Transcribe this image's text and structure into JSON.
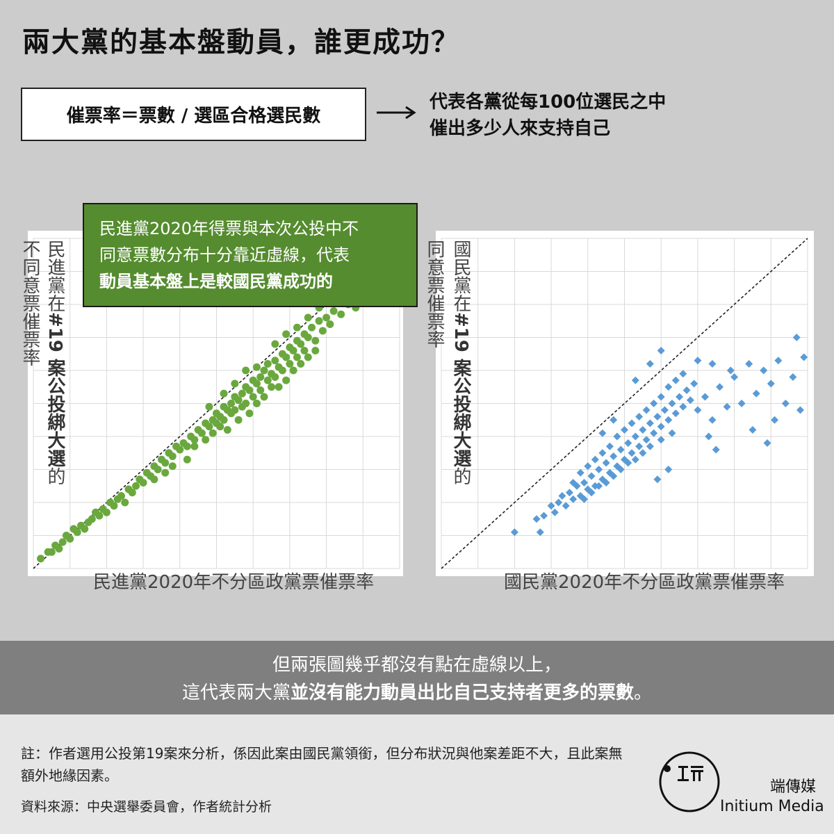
{
  "title": "兩大黨的基本盤動員，誰更成功？",
  "formula": "催票率＝票數 / 選區合格選民數",
  "formula_desc": [
    "代表各黨從每100位選民之中",
    "催出多少人來支持自己"
  ],
  "callout": {
    "lines": [
      "民進黨2020年得票與本次公投中不",
      "同意票數分布十分靠近虛線，代表"
    ],
    "bold_line": "動員基本盤上是較國民黨成功的"
  },
  "banner": {
    "line1": "但兩張圖幾乎都沒有點在虛線以上，",
    "line2_normal": "這代表兩大黨",
    "line2_bold": "並沒有能力動員出比自己支持者更多的票數",
    "line2_end": "。"
  },
  "footer": {
    "note": "註：作者選用公投第19案來分析，係因此案由國民黨領銜，但分布狀況與他案差距不大，且此案無額外地緣因素。",
    "source": "資料來源：中央選舉委員會，作者統計分析",
    "brand_zh": "端傳媒",
    "brand_en": "Initium Media"
  },
  "colors": {
    "dpp": "#6aa83e",
    "kmt": "#5b9bd5",
    "callout": "#558c2f",
    "banner": "#7f7f7f"
  },
  "chart_data": [
    {
      "type": "scatter",
      "series_color": "#6aa83e",
      "marker": "circle",
      "xlabel": "民進黨2020年不分區政黨票催票率",
      "ylabel_left": "不同意票催票率",
      "ylabel_right_normal_top": "民進黨在",
      "ylabel_right_bold": "#19 案公投綁大選",
      "ylabel_right_normal_bottom": "的",
      "xlim": [
        0,
        1
      ],
      "ylim": [
        0,
        1
      ],
      "grid": true,
      "reference_line": "y = x (dashed)",
      "points": [
        [
          0.02,
          0.03
        ],
        [
          0.04,
          0.05
        ],
        [
          0.05,
          0.05
        ],
        [
          0.06,
          0.07
        ],
        [
          0.07,
          0.06
        ],
        [
          0.08,
          0.08
        ],
        [
          0.09,
          0.1
        ],
        [
          0.1,
          0.09
        ],
        [
          0.11,
          0.12
        ],
        [
          0.12,
          0.11
        ],
        [
          0.13,
          0.13
        ],
        [
          0.14,
          0.12
        ],
        [
          0.15,
          0.14
        ],
        [
          0.16,
          0.15
        ],
        [
          0.17,
          0.17
        ],
        [
          0.18,
          0.16
        ],
        [
          0.19,
          0.18
        ],
        [
          0.2,
          0.17
        ],
        [
          0.21,
          0.2
        ],
        [
          0.22,
          0.19
        ],
        [
          0.23,
          0.21
        ],
        [
          0.24,
          0.22
        ],
        [
          0.25,
          0.2
        ],
        [
          0.26,
          0.24
        ],
        [
          0.27,
          0.23
        ],
        [
          0.28,
          0.25
        ],
        [
          0.29,
          0.27
        ],
        [
          0.3,
          0.26
        ],
        [
          0.31,
          0.29
        ],
        [
          0.32,
          0.28
        ],
        [
          0.33,
          0.31
        ],
        [
          0.34,
          0.3
        ],
        [
          0.35,
          0.33
        ],
        [
          0.36,
          0.32
        ],
        [
          0.37,
          0.35
        ],
        [
          0.38,
          0.34
        ],
        [
          0.39,
          0.37
        ],
        [
          0.4,
          0.36
        ],
        [
          0.41,
          0.38
        ],
        [
          0.42,
          0.37
        ],
        [
          0.43,
          0.4
        ],
        [
          0.44,
          0.39
        ],
        [
          0.45,
          0.42
        ],
        [
          0.46,
          0.41
        ],
        [
          0.47,
          0.44
        ],
        [
          0.48,
          0.43
        ],
        [
          0.49,
          0.45
        ],
        [
          0.5,
          0.44
        ],
        [
          0.5,
          0.47
        ],
        [
          0.51,
          0.46
        ],
        [
          0.52,
          0.49
        ],
        [
          0.52,
          0.45
        ],
        [
          0.53,
          0.48
        ],
        [
          0.54,
          0.5
        ],
        [
          0.54,
          0.47
        ],
        [
          0.55,
          0.52
        ],
        [
          0.55,
          0.48
        ],
        [
          0.56,
          0.51
        ],
        [
          0.57,
          0.53
        ],
        [
          0.57,
          0.49
        ],
        [
          0.58,
          0.55
        ],
        [
          0.58,
          0.5
        ],
        [
          0.59,
          0.54
        ],
        [
          0.6,
          0.57
        ],
        [
          0.6,
          0.52
        ],
        [
          0.61,
          0.56
        ],
        [
          0.62,
          0.58
        ],
        [
          0.62,
          0.54
        ],
        [
          0.63,
          0.6
        ],
        [
          0.64,
          0.57
        ],
        [
          0.64,
          0.62
        ],
        [
          0.65,
          0.59
        ],
        [
          0.66,
          0.63
        ],
        [
          0.66,
          0.58
        ],
        [
          0.67,
          0.61
        ],
        [
          0.68,
          0.65
        ],
        [
          0.68,
          0.6
        ],
        [
          0.69,
          0.64
        ],
        [
          0.7,
          0.67
        ],
        [
          0.7,
          0.62
        ],
        [
          0.71,
          0.66
        ],
        [
          0.72,
          0.69
        ],
        [
          0.72,
          0.64
        ],
        [
          0.73,
          0.68
        ],
        [
          0.74,
          0.71
        ],
        [
          0.74,
          0.66
        ],
        [
          0.75,
          0.7
        ],
        [
          0.76,
          0.73
        ],
        [
          0.77,
          0.69
        ],
        [
          0.78,
          0.75
        ],
        [
          0.79,
          0.72
        ],
        [
          0.8,
          0.76
        ],
        [
          0.81,
          0.74
        ],
        [
          0.82,
          0.78
        ],
        [
          0.84,
          0.77
        ],
        [
          0.86,
          0.8
        ],
        [
          0.88,
          0.79
        ],
        [
          0.9,
          0.82
        ],
        [
          0.53,
          0.42
        ],
        [
          0.56,
          0.45
        ],
        [
          0.59,
          0.47
        ],
        [
          0.61,
          0.5
        ],
        [
          0.63,
          0.52
        ],
        [
          0.65,
          0.55
        ],
        [
          0.47,
          0.39
        ],
        [
          0.49,
          0.41
        ],
        [
          0.51,
          0.43
        ],
        [
          0.44,
          0.37
        ],
        [
          0.42,
          0.33
        ],
        [
          0.38,
          0.31
        ],
        [
          0.36,
          0.29
        ],
        [
          0.33,
          0.27
        ],
        [
          0.67,
          0.55
        ],
        [
          0.69,
          0.57
        ],
        [
          0.71,
          0.6
        ],
        [
          0.73,
          0.62
        ],
        [
          0.75,
          0.64
        ],
        [
          0.77,
          0.66
        ],
        [
          0.58,
          0.6
        ],
        [
          0.61,
          0.61
        ],
        [
          0.55,
          0.56
        ],
        [
          0.52,
          0.53
        ],
        [
          0.48,
          0.49
        ],
        [
          0.66,
          0.68
        ],
        [
          0.69,
          0.71
        ],
        [
          0.72,
          0.73
        ],
        [
          0.75,
          0.76
        ],
        [
          0.78,
          0.79
        ]
      ]
    },
    {
      "type": "scatter",
      "series_color": "#5b9bd5",
      "marker": "diamond",
      "xlabel": "國民黨2020年不分區政黨票催票率",
      "ylabel_left": "同意票催票率",
      "ylabel_right_normal_top": "國民黨在",
      "ylabel_right_bold": "#19 案公投綁大選",
      "ylabel_right_normal_bottom": "的",
      "xlim": [
        0,
        1
      ],
      "ylim": [
        0,
        1
      ],
      "grid": true,
      "reference_line": "y = x (dashed)",
      "points": [
        [
          0.2,
          0.11
        ],
        [
          0.27,
          0.11
        ],
        [
          0.26,
          0.15
        ],
        [
          0.28,
          0.16
        ],
        [
          0.3,
          0.19
        ],
        [
          0.31,
          0.17
        ],
        [
          0.32,
          0.2
        ],
        [
          0.33,
          0.22
        ],
        [
          0.34,
          0.19
        ],
        [
          0.35,
          0.23
        ],
        [
          0.36,
          0.21
        ],
        [
          0.37,
          0.25
        ],
        [
          0.38,
          0.22
        ],
        [
          0.39,
          0.26
        ],
        [
          0.4,
          0.24
        ],
        [
          0.41,
          0.28
        ],
        [
          0.42,
          0.25
        ],
        [
          0.43,
          0.3
        ],
        [
          0.44,
          0.27
        ],
        [
          0.45,
          0.32
        ],
        [
          0.46,
          0.29
        ],
        [
          0.47,
          0.34
        ],
        [
          0.48,
          0.31
        ],
        [
          0.49,
          0.36
        ],
        [
          0.5,
          0.33
        ],
        [
          0.51,
          0.38
        ],
        [
          0.52,
          0.35
        ],
        [
          0.53,
          0.4
        ],
        [
          0.54,
          0.37
        ],
        [
          0.55,
          0.42
        ],
        [
          0.56,
          0.39
        ],
        [
          0.57,
          0.44
        ],
        [
          0.58,
          0.41
        ],
        [
          0.59,
          0.46
        ],
        [
          0.6,
          0.43
        ],
        [
          0.61,
          0.48
        ],
        [
          0.62,
          0.45
        ],
        [
          0.63,
          0.5
        ],
        [
          0.64,
          0.47
        ],
        [
          0.65,
          0.52
        ],
        [
          0.66,
          0.49
        ],
        [
          0.67,
          0.54
        ],
        [
          0.68,
          0.51
        ],
        [
          0.69,
          0.56
        ],
        [
          0.36,
          0.26
        ],
        [
          0.38,
          0.29
        ],
        [
          0.4,
          0.31
        ],
        [
          0.42,
          0.33
        ],
        [
          0.44,
          0.35
        ],
        [
          0.46,
          0.37
        ],
        [
          0.48,
          0.4
        ],
        [
          0.5,
          0.42
        ],
        [
          0.52,
          0.44
        ],
        [
          0.54,
          0.46
        ],
        [
          0.56,
          0.48
        ],
        [
          0.58,
          0.5
        ],
        [
          0.6,
          0.52
        ],
        [
          0.62,
          0.55
        ],
        [
          0.64,
          0.57
        ],
        [
          0.66,
          0.59
        ],
        [
          0.39,
          0.21
        ],
        [
          0.41,
          0.23
        ],
        [
          0.43,
          0.25
        ],
        [
          0.45,
          0.26
        ],
        [
          0.47,
          0.28
        ],
        [
          0.49,
          0.3
        ],
        [
          0.51,
          0.32
        ],
        [
          0.53,
          0.33
        ],
        [
          0.55,
          0.35
        ],
        [
          0.57,
          0.37
        ],
        [
          0.6,
          0.39
        ],
        [
          0.63,
          0.41
        ],
        [
          0.7,
          0.48
        ],
        [
          0.72,
          0.52
        ],
        [
          0.74,
          0.45
        ],
        [
          0.76,
          0.55
        ],
        [
          0.78,
          0.49
        ],
        [
          0.8,
          0.58
        ],
        [
          0.82,
          0.5
        ],
        [
          0.84,
          0.62
        ],
        [
          0.86,
          0.53
        ],
        [
          0.88,
          0.6
        ],
        [
          0.9,
          0.56
        ],
        [
          0.92,
          0.63
        ],
        [
          0.94,
          0.5
        ],
        [
          0.96,
          0.58
        ],
        [
          0.98,
          0.48
        ],
        [
          0.99,
          0.64
        ],
        [
          0.85,
          0.42
        ],
        [
          0.89,
          0.38
        ],
        [
          0.91,
          0.45
        ],
        [
          0.73,
          0.4
        ],
        [
          0.75,
          0.36
        ],
        [
          0.62,
          0.3
        ],
        [
          0.59,
          0.27
        ],
        [
          0.97,
          0.7
        ],
        [
          0.6,
          0.66
        ],
        [
          0.57,
          0.62
        ],
        [
          0.53,
          0.57
        ],
        [
          0.47,
          0.45
        ],
        [
          0.44,
          0.41
        ],
        [
          0.7,
          0.63
        ],
        [
          0.74,
          0.62
        ],
        [
          0.79,
          0.6
        ]
      ]
    }
  ]
}
